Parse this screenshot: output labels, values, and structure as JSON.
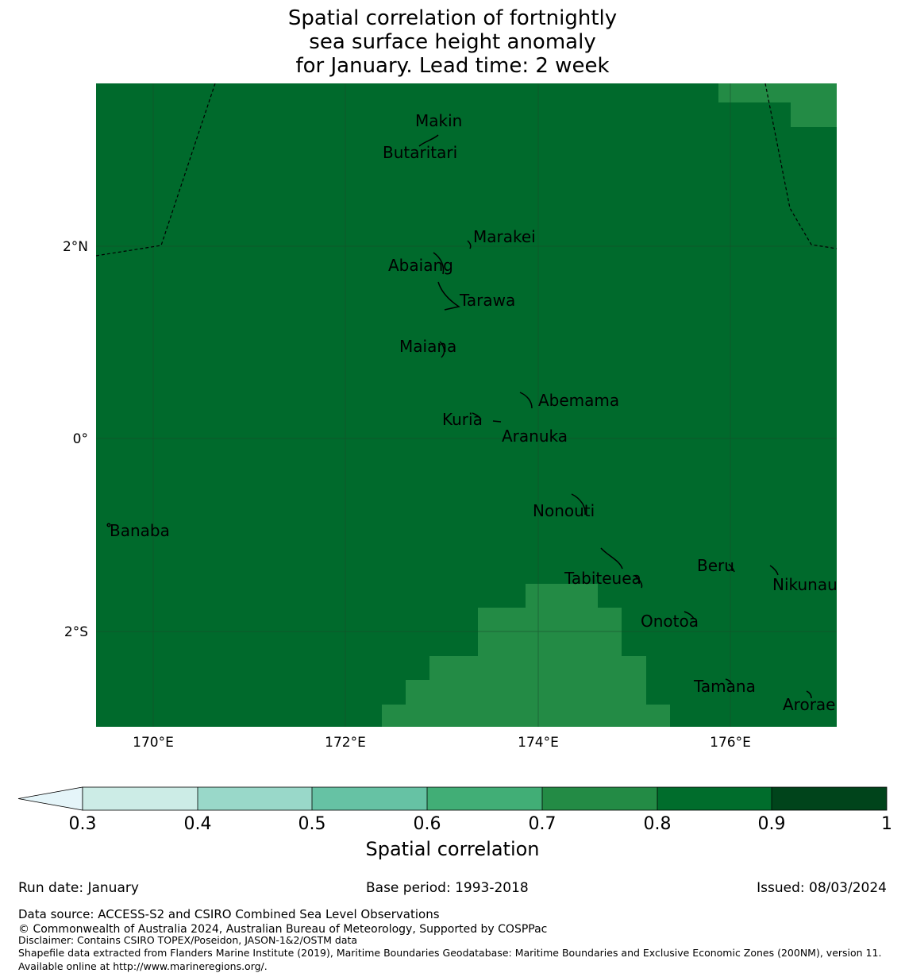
{
  "title": {
    "line1": "Spatial correlation of fortnightly",
    "line2": "sea surface height anomaly",
    "line3": "for January. Lead time: 2 week"
  },
  "map": {
    "background_color": "#006a2c",
    "patch_color": "#238b45",
    "lat_labels": [
      "2°N",
      "0°",
      "2°S"
    ],
    "lon_labels": [
      "170°E",
      "172°E",
      "174°E",
      "176°E"
    ],
    "places": [
      "Makin",
      "Butaritari",
      "Marakei",
      "Abaiang",
      "Tarawa",
      "Maiana",
      "Abemama",
      "Kuria",
      "Aranuka",
      "Nonouti",
      "Banaba",
      "Beru",
      "Tabiteuea",
      "Nikunau",
      "Onotoa",
      "Tamana",
      "Arorae"
    ]
  },
  "colorbar": {
    "label": "Spatial correlation",
    "ticks": [
      "0.3",
      "0.4",
      "0.5",
      "0.6",
      "0.7",
      "0.8",
      "0.9",
      "1"
    ],
    "colors": [
      "#e5f5f9",
      "#ccece6",
      "#99d8c9",
      "#66c2a4",
      "#41ae76",
      "#238b45",
      "#006d2c",
      "#00441b"
    ]
  },
  "footer": {
    "run_date": "Run date: January",
    "base_period": "Base period: 1993-2018",
    "issued": "Issued: 08/03/2024",
    "data_source": "Data source: ACCESS-S2 and CSIRO Combined Sea Level Observations",
    "copyright": "© Commonwealth of Australia 2024, Australian Bureau of Meteorology, Supported by COSPPac",
    "disclaimer": "Disclaimer: Contains CSIRO TOPEX/Poseidon, JASON-1&2/OSTM data",
    "shapefile": "Shapefile data extracted from Flanders Marine Institute (2019), Maritime Boundaries Geodatabase: Maritime Boundaries and Exclusive Economic Zones (200NM), version 11. Available online at http://www.marineregions.org/."
  }
}
